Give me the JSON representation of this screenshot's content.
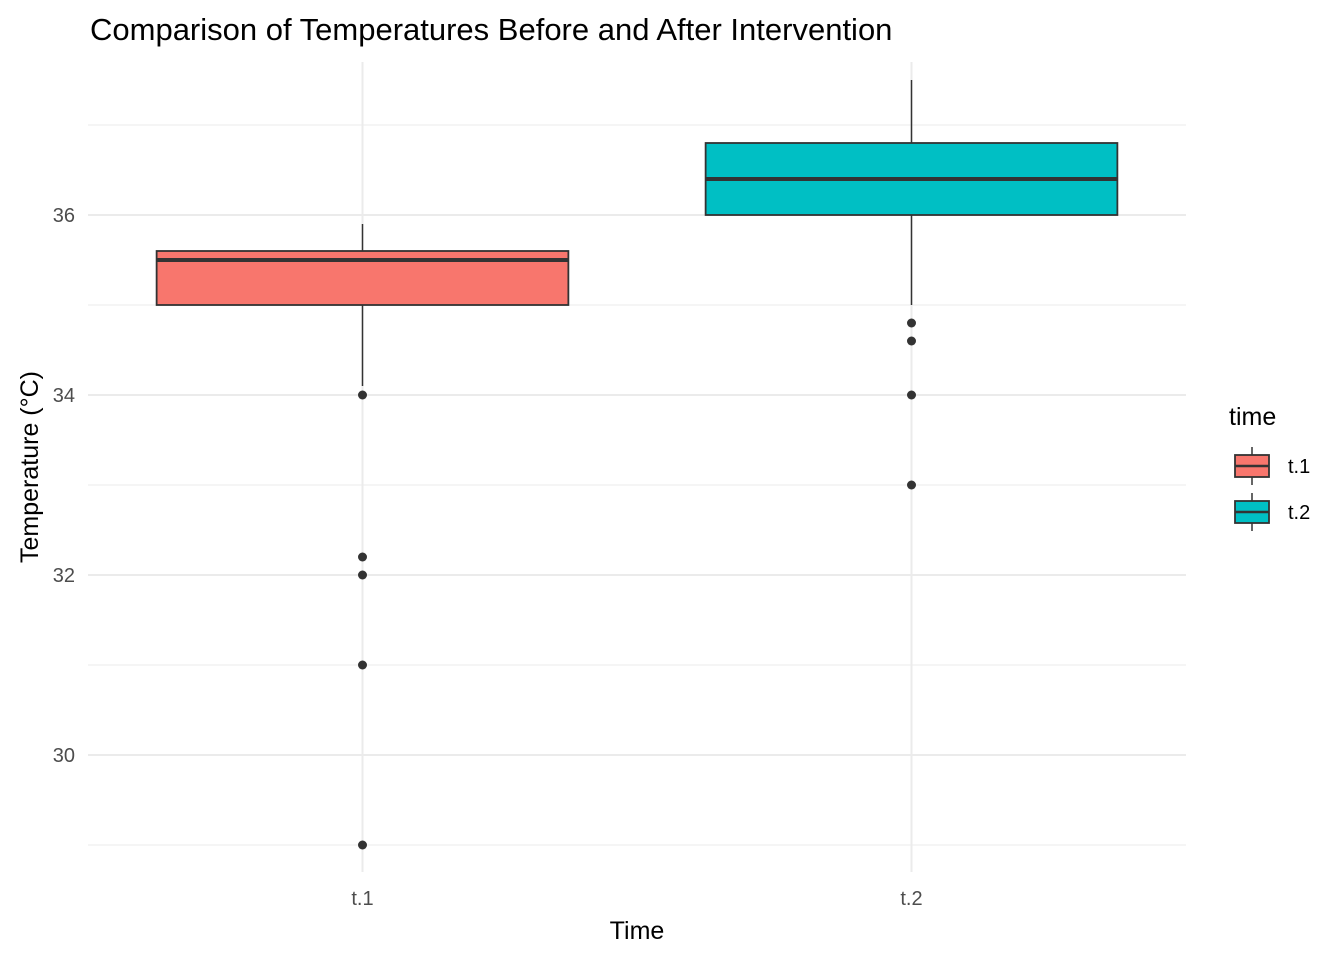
{
  "chart_data": {
    "type": "boxplot",
    "title": "Comparison of Temperatures Before and After Intervention",
    "xlabel": "Time",
    "ylabel": "Temperature (°C)",
    "categories": [
      "t.1",
      "t.2"
    ],
    "ylim": [
      28.7,
      37.7
    ],
    "yticks": [
      30,
      32,
      34,
      36
    ],
    "grid": true,
    "legend": {
      "title": "time",
      "position": "right",
      "entries": [
        "t.1",
        "t.2"
      ]
    },
    "series": [
      {
        "category": "t.1",
        "color": "#F8766D",
        "whisker_low": 34.1,
        "q1": 35.0,
        "median": 35.5,
        "q3": 35.6,
        "whisker_high": 35.9,
        "outliers": [
          34.0,
          32.2,
          32.0,
          31.0,
          29.0
        ]
      },
      {
        "category": "t.2",
        "color": "#00BFC4",
        "whisker_low": 35.0,
        "q1": 36.0,
        "median": 36.4,
        "q3": 36.8,
        "whisker_high": 37.5,
        "outliers": [
          34.8,
          34.6,
          34.0,
          33.0
        ]
      }
    ]
  }
}
